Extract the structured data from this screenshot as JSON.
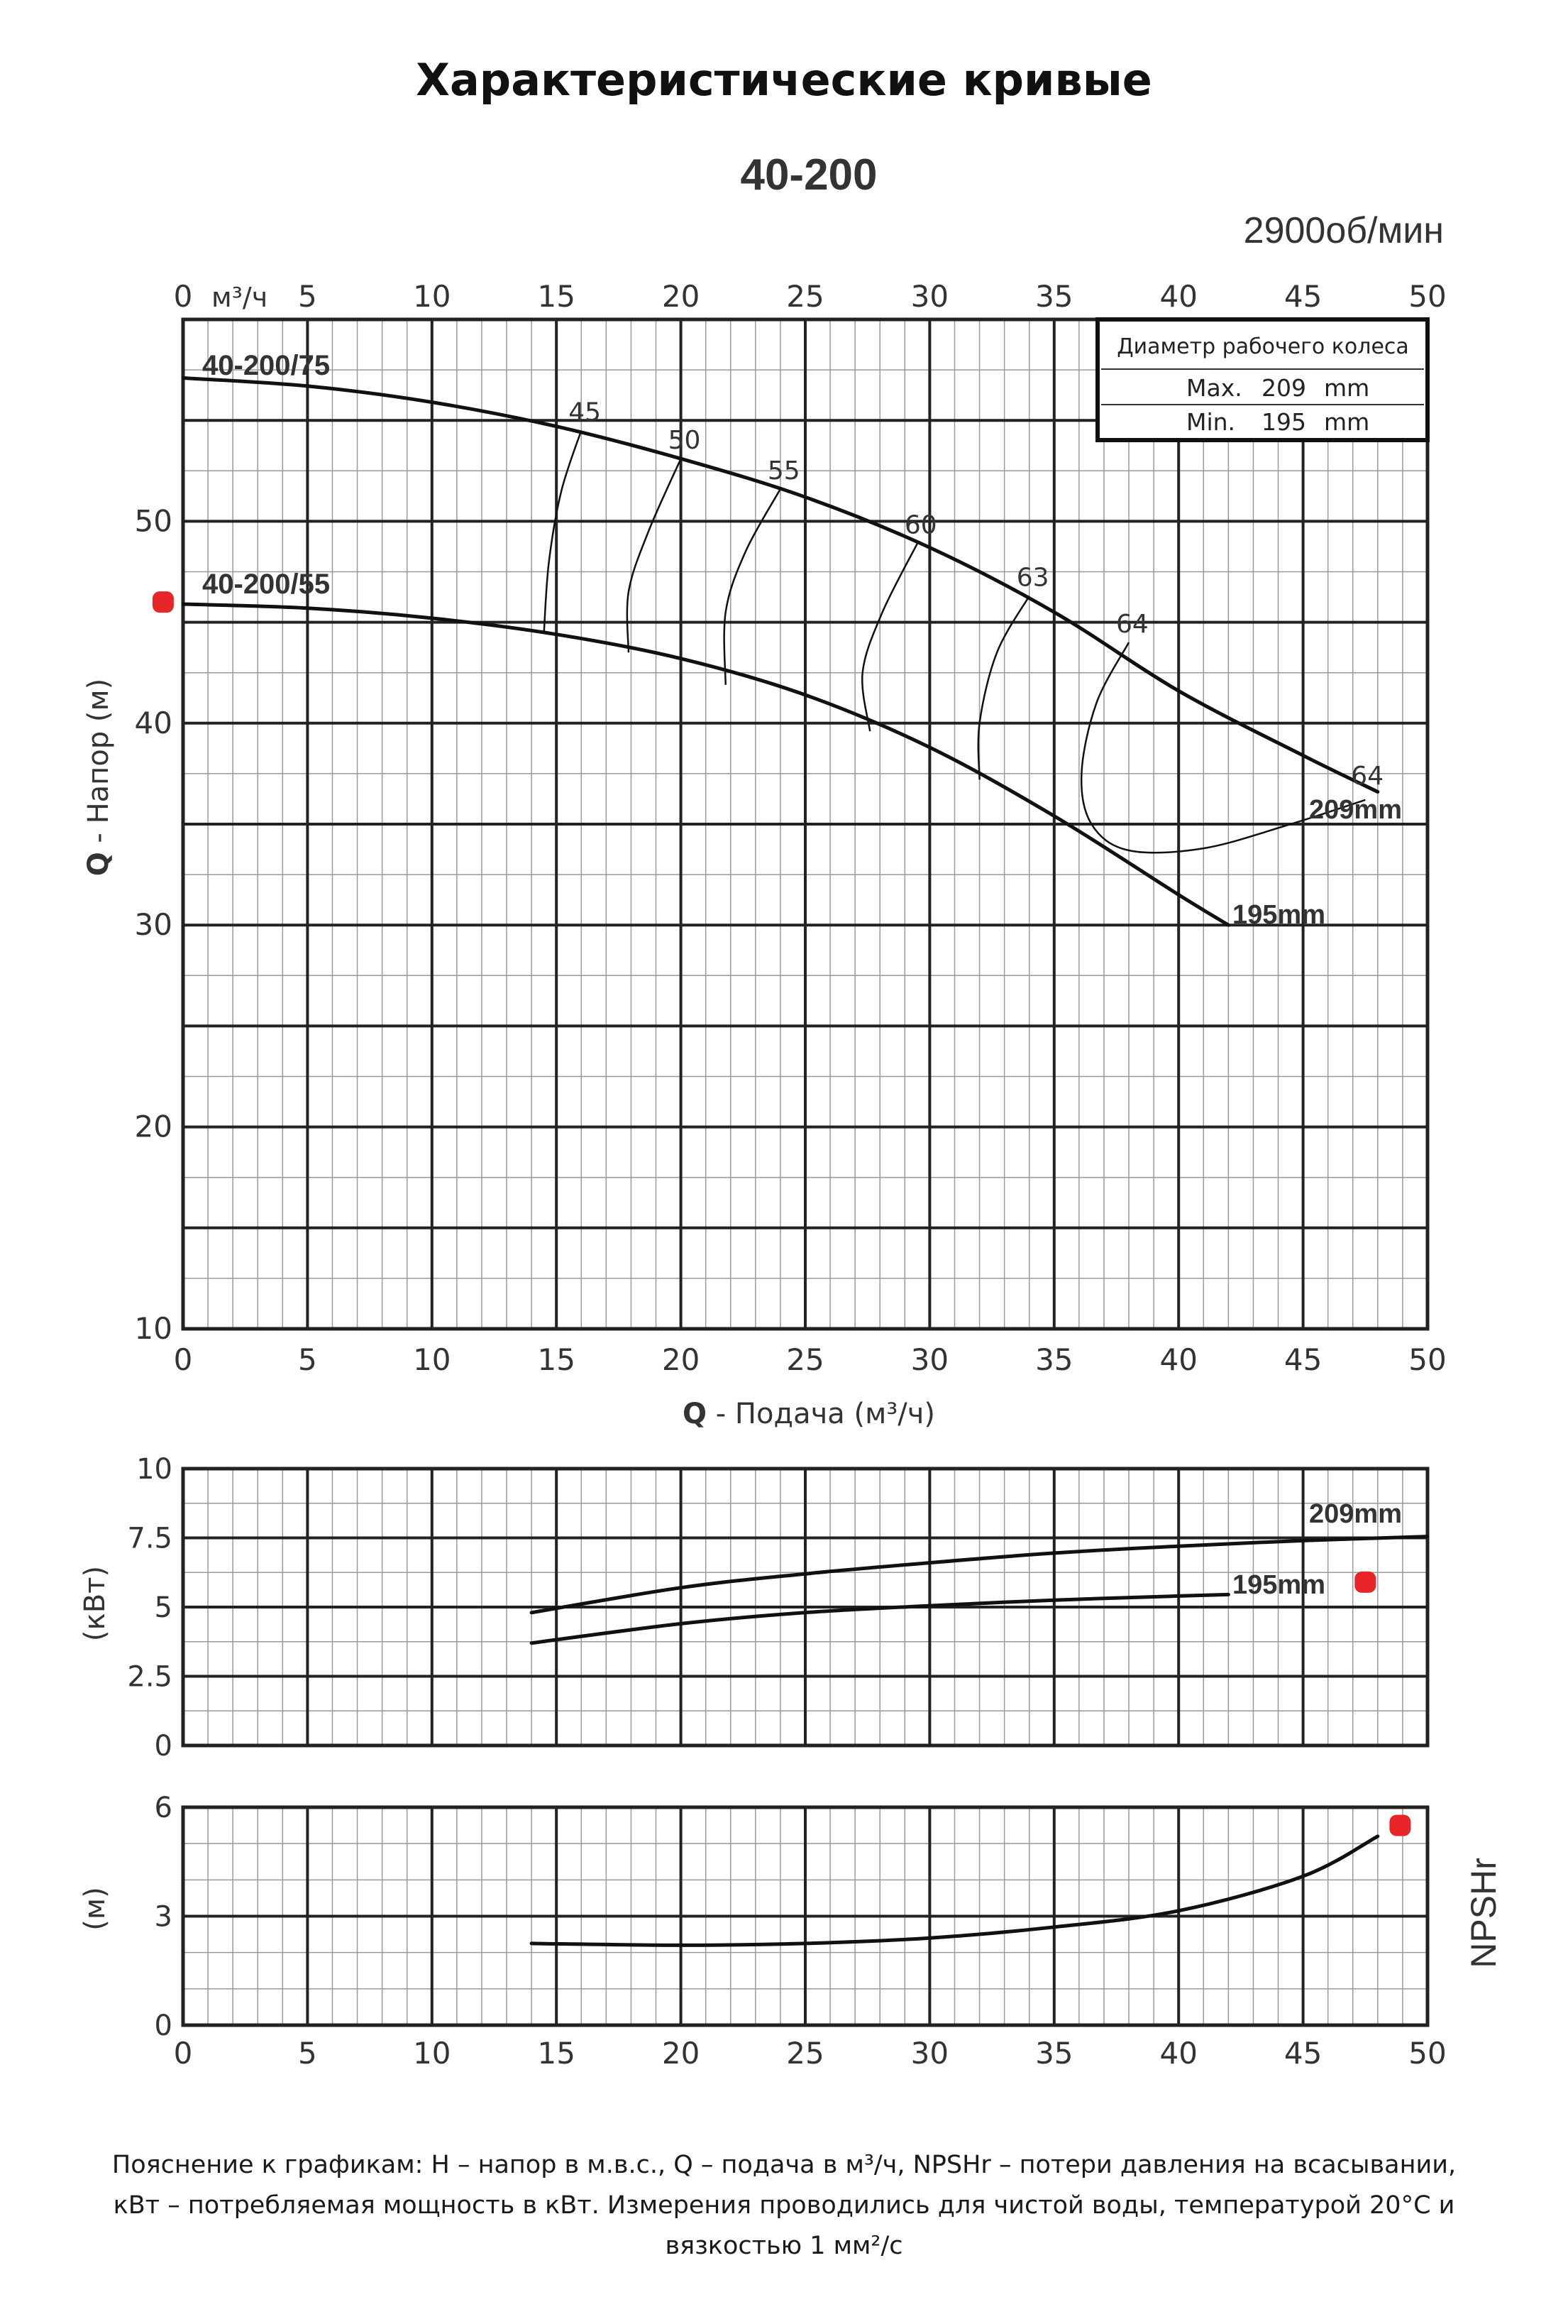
{
  "page": {
    "title": "Характеристические кривые",
    "note": "Пояснение к графикам: H – напор в м.в.с., Q – подача в м³/ч, NPSHr – потери давления на всасывании, кВт – потребляемая мощность в кВт. Измерения проводились для чистой воды, температурой 20°C и вязкостью 1 мм²/с"
  },
  "colors": {
    "line": "#111111",
    "grid": "#222222",
    "minor_grid": "#9a9a9a",
    "marker": "#e8262a"
  },
  "chart_data": [
    {
      "type": "line",
      "title": "40-200",
      "subtitle": "2900об/мин",
      "top_axis_unit": "м³/ч",
      "xlabel_bold": "Q",
      "xlabel_rest": " - Подача (м³/ч)",
      "ylabel_bold": "Q",
      "ylabel_rest": " - Напор (м)",
      "xlim": [
        0,
        50
      ],
      "ylim": [
        10,
        60
      ],
      "x_ticks": [
        "0",
        "5",
        "10",
        "15",
        "20",
        "25",
        "30",
        "35",
        "40",
        "45",
        "50"
      ],
      "y_ticks": [
        "10",
        "20",
        "30",
        "40",
        "50"
      ],
      "grid": true,
      "legend_box": {
        "title": "Диаметр рабочего колеса",
        "rows": [
          {
            "label": "Max.",
            "value": "209",
            "unit": "mm"
          },
          {
            "label": "Min.",
            "value": "195",
            "unit": "mm"
          }
        ]
      },
      "series": [
        {
          "name": "40-200/75",
          "end_label": "209mm",
          "points": [
            [
              0,
              57.1
            ],
            [
              5,
              56.7
            ],
            [
              10,
              55.9
            ],
            [
              15,
              54.7
            ],
            [
              20,
              53.1
            ],
            [
              25,
              51.2
            ],
            [
              30,
              48.7
            ],
            [
              35,
              45.5
            ],
            [
              40,
              41.6
            ],
            [
              45,
              38.4
            ],
            [
              48,
              36.6
            ]
          ]
        },
        {
          "name": "40-200/55",
          "end_label": "195mm",
          "points": [
            [
              0,
              45.9
            ],
            [
              5,
              45.7
            ],
            [
              10,
              45.2
            ],
            [
              15,
              44.4
            ],
            [
              20,
              43.2
            ],
            [
              25,
              41.4
            ],
            [
              30,
              38.8
            ],
            [
              35,
              35.4
            ],
            [
              40,
              31.5
            ],
            [
              42,
              30
            ]
          ]
        }
      ],
      "efficiency_curves": [
        {
          "label": "45",
          "points": [
            [
              16,
              54.5
            ],
            [
              15.2,
              51.5
            ],
            [
              14.7,
              48
            ],
            [
              14.5,
              44.5
            ]
          ]
        },
        {
          "label": "50",
          "points": [
            [
              20,
              53.1
            ],
            [
              18.7,
              49.5
            ],
            [
              17.9,
              46.5
            ],
            [
              17.9,
              43.5
            ]
          ]
        },
        {
          "label": "55",
          "points": [
            [
              24,
              51.6
            ],
            [
              22.6,
              48.5
            ],
            [
              21.8,
              45.5
            ],
            [
              21.8,
              41.9
            ]
          ]
        },
        {
          "label": "60",
          "points": [
            [
              29.5,
              48.9
            ],
            [
              28.1,
              45.5
            ],
            [
              27.3,
              42.5
            ],
            [
              27.6,
              39.6
            ]
          ]
        },
        {
          "label": "63",
          "points": [
            [
              34,
              46.3
            ],
            [
              32.7,
              43.5
            ],
            [
              32,
              40
            ],
            [
              32,
              37.2
            ]
          ]
        },
        {
          "label": "64",
          "points": [
            [
              38,
              44
            ],
            [
              36.7,
              41
            ],
            [
              36.1,
              37.5
            ],
            [
              36.5,
              35
            ],
            [
              38,
              33.7
            ],
            [
              41,
              33.8
            ],
            [
              44.5,
              35
            ],
            [
              47.5,
              36.2
            ]
          ]
        }
      ],
      "efficiency_end_label": "64",
      "markers": [
        [
          -0.8,
          46
        ]
      ]
    },
    {
      "type": "line",
      "ylabel": "(кВт)",
      "xlim": [
        0,
        50
      ],
      "ylim": [
        0,
        10
      ],
      "y_ticks": [
        "0",
        "2.5",
        "5",
        "7.5",
        "10"
      ],
      "grid": true,
      "series": [
        {
          "name": "209mm",
          "points": [
            [
              14,
              4.8
            ],
            [
              20,
              5.7
            ],
            [
              25,
              6.2
            ],
            [
              30,
              6.6
            ],
            [
              35,
              6.95
            ],
            [
              40,
              7.2
            ],
            [
              45,
              7.4
            ],
            [
              50,
              7.55
            ]
          ]
        },
        {
          "name": "195mm",
          "points": [
            [
              14,
              3.7
            ],
            [
              20,
              4.4
            ],
            [
              25,
              4.8
            ],
            [
              30,
              5.05
            ],
            [
              35,
              5.25
            ],
            [
              40,
              5.4
            ],
            [
              42,
              5.45
            ]
          ]
        }
      ],
      "markers": [
        [
          47.5,
          5.9
        ]
      ]
    },
    {
      "type": "line",
      "ylabel": "(м)",
      "side_label": "NPSHr",
      "xlim": [
        0,
        50
      ],
      "ylim": [
        0,
        6
      ],
      "x_ticks": [
        "0",
        "5",
        "10",
        "15",
        "20",
        "25",
        "30",
        "35",
        "40",
        "45",
        "50"
      ],
      "y_ticks": [
        "0",
        "3",
        "6"
      ],
      "grid": true,
      "series": [
        {
          "name": "NPSHr",
          "points": [
            [
              14,
              2.25
            ],
            [
              20,
              2.2
            ],
            [
              25,
              2.25
            ],
            [
              30,
              2.4
            ],
            [
              35,
              2.7
            ],
            [
              40,
              3.15
            ],
            [
              45,
              4.1
            ],
            [
              48,
              5.2
            ]
          ]
        }
      ],
      "markers": [
        [
          48.9,
          5.5
        ]
      ]
    }
  ]
}
